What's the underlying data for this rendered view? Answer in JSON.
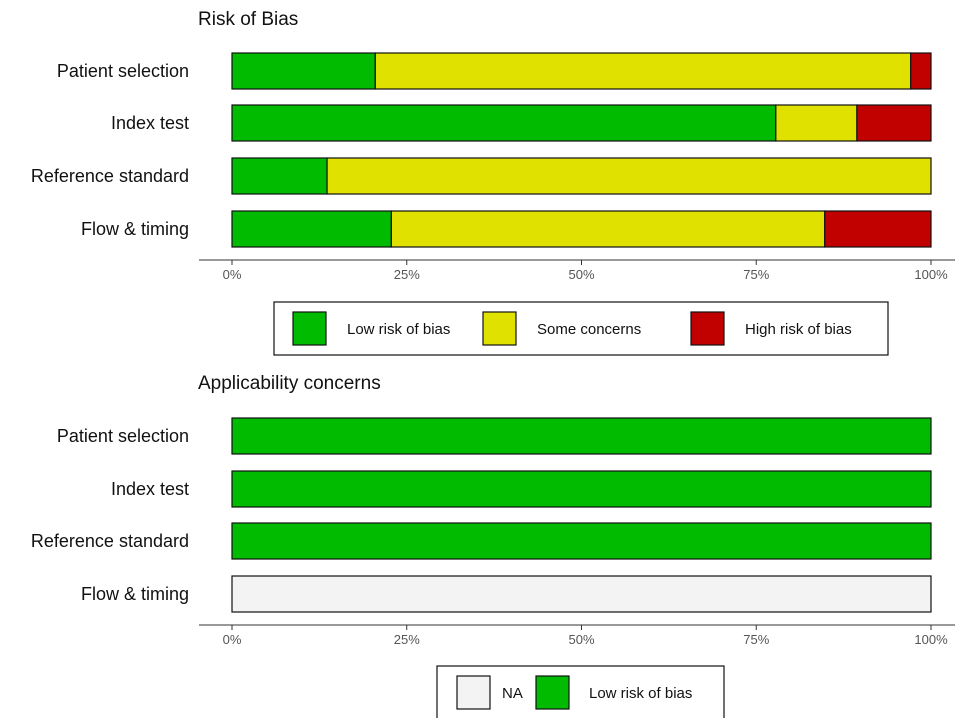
{
  "colors": {
    "low": "#00bb00",
    "some": "#e1e100",
    "high": "#c10000",
    "na": "#f3f3f3",
    "bar_border": "#111111",
    "axis_line": "#333333",
    "tick_label": "#555555"
  },
  "chart_data": [
    {
      "type": "bar",
      "orientation": "horizontal",
      "stacked": true,
      "title": "Risk of Bias",
      "categories": [
        "Patient selection",
        "Index test",
        "Reference standard",
        "Flow & timing"
      ],
      "series": [
        {
          "name": "Low risk of bias",
          "color_key": "low",
          "values": [
            20.5,
            77.8,
            13.6,
            22.8
          ]
        },
        {
          "name": "Some concerns",
          "color_key": "some",
          "values": [
            76.6,
            11.6,
            86.4,
            62.0
          ]
        },
        {
          "name": "High risk of bias",
          "color_key": "high",
          "values": [
            2.9,
            10.6,
            0,
            15.2
          ]
        }
      ],
      "xlim": [
        0,
        100
      ],
      "x_ticks": [
        "0%",
        "25%",
        "50%",
        "75%",
        "100%"
      ],
      "grid": false,
      "legend": {
        "position": "bottom",
        "items": [
          {
            "label": "Low risk of bias",
            "color_key": "low"
          },
          {
            "label": "Some concerns",
            "color_key": "some"
          },
          {
            "label": "High risk of bias",
            "color_key": "high"
          }
        ]
      }
    },
    {
      "type": "bar",
      "orientation": "horizontal",
      "stacked": true,
      "title": "Applicability concerns",
      "categories": [
        "Patient selection",
        "Index test",
        "Reference standard",
        "Flow & timing"
      ],
      "series": [
        {
          "name": "NA",
          "color_key": "na",
          "values": [
            0,
            0,
            0,
            100
          ]
        },
        {
          "name": "Low risk of bias",
          "color_key": "low",
          "values": [
            100,
            100,
            100,
            0
          ]
        }
      ],
      "xlim": [
        0,
        100
      ],
      "x_ticks": [
        "0%",
        "25%",
        "50%",
        "75%",
        "100%"
      ],
      "grid": false,
      "legend": {
        "position": "bottom",
        "items": [
          {
            "label": "NA",
            "color_key": "na"
          },
          {
            "label": "Low risk of bias",
            "color_key": "low"
          }
        ]
      }
    }
  ]
}
